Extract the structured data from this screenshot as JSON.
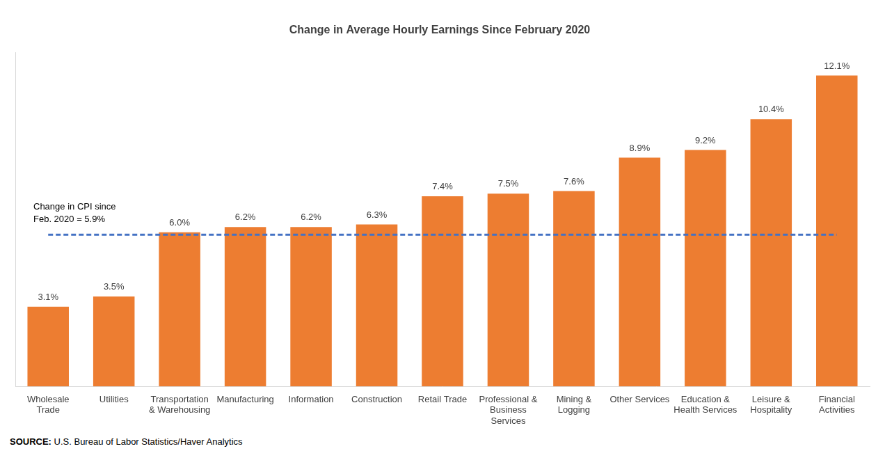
{
  "chart_data": {
    "type": "bar",
    "title": "Change in Average Hourly Earnings Since February 2020",
    "categories": [
      "Wholesale Trade",
      "Utilities",
      "Transportation & Warehousing",
      "Manufacturing",
      "Information",
      "Construction",
      "Retail Trade",
      "Professional & Business Services",
      "Mining & Logging",
      "Other Services",
      "Education & Health Services",
      "Leisure & Hospitality",
      "Financial Activities"
    ],
    "values": [
      3.1,
      3.5,
      6.0,
      6.2,
      6.2,
      6.3,
      7.4,
      7.5,
      7.6,
      8.9,
      9.2,
      10.4,
      12.1
    ],
    "value_labels": [
      "3.1%",
      "3.5%",
      "6.0%",
      "6.2%",
      "6.2%",
      "6.3%",
      "7.4%",
      "7.5%",
      "7.6%",
      "8.9%",
      "9.2%",
      "10.4%",
      "12.1%"
    ],
    "color": "#ed7d31",
    "data_labels": true,
    "ylim": [
      0,
      13
    ],
    "grid": false,
    "tick_labels": "x",
    "annotations": [
      {
        "text": [
          "Change in CPI since",
          "Feb. 2020 = 5.9%"
        ],
        "value": 5.9,
        "color": "#4472c4",
        "line_style": "dashed"
      }
    ],
    "source": "SOURCE: U.S. Bureau of Labor Statistics/Haver Analytics"
  }
}
